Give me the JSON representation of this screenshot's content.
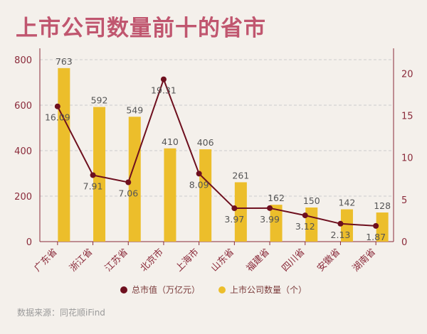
{
  "title": "上市公司数量前十的省市",
  "source": "数据来源：同花顺iFind",
  "colors": {
    "title": "#c0566f",
    "bar": "#ecbe2b",
    "line": "#6e0f1e",
    "axis_text": "#8a2a3a",
    "grid": "#cccccc",
    "label": "#555555"
  },
  "chart_data": {
    "type": "bar",
    "categories": [
      "广东省",
      "浙江省",
      "江苏省",
      "北京市",
      "上海市",
      "山东省",
      "福建省",
      "四川省",
      "安徽省",
      "湖南省"
    ],
    "series": [
      {
        "name": "上市公司数量（个）",
        "type": "bar",
        "axis": "left",
        "values": [
          763,
          592,
          549,
          410,
          406,
          261,
          162,
          150,
          142,
          128
        ],
        "labels": [
          "763",
          "592",
          "549",
          "410",
          "406",
          "261",
          "162",
          "150",
          "142",
          "128"
        ]
      },
      {
        "name": "总市值（万亿元）",
        "type": "line",
        "axis": "right",
        "values": [
          16.09,
          7.91,
          7.06,
          19.31,
          8.09,
          3.97,
          3.99,
          3.12,
          2.13,
          1.87
        ],
        "labels": [
          "16.09",
          "7.91",
          "7.06",
          "19.31",
          "8.09",
          "3.97",
          "3.99",
          "3.12",
          "2.13",
          "1.87"
        ]
      }
    ],
    "y_left": {
      "lim": [
        0,
        850
      ],
      "ticks": [
        "0",
        "200",
        "400",
        "600",
        "800"
      ]
    },
    "y_right": {
      "lim": [
        0,
        23
      ],
      "ticks": [
        "0",
        "5",
        "10",
        "15",
        "20"
      ]
    },
    "grid": true,
    "legend": "bottom"
  }
}
